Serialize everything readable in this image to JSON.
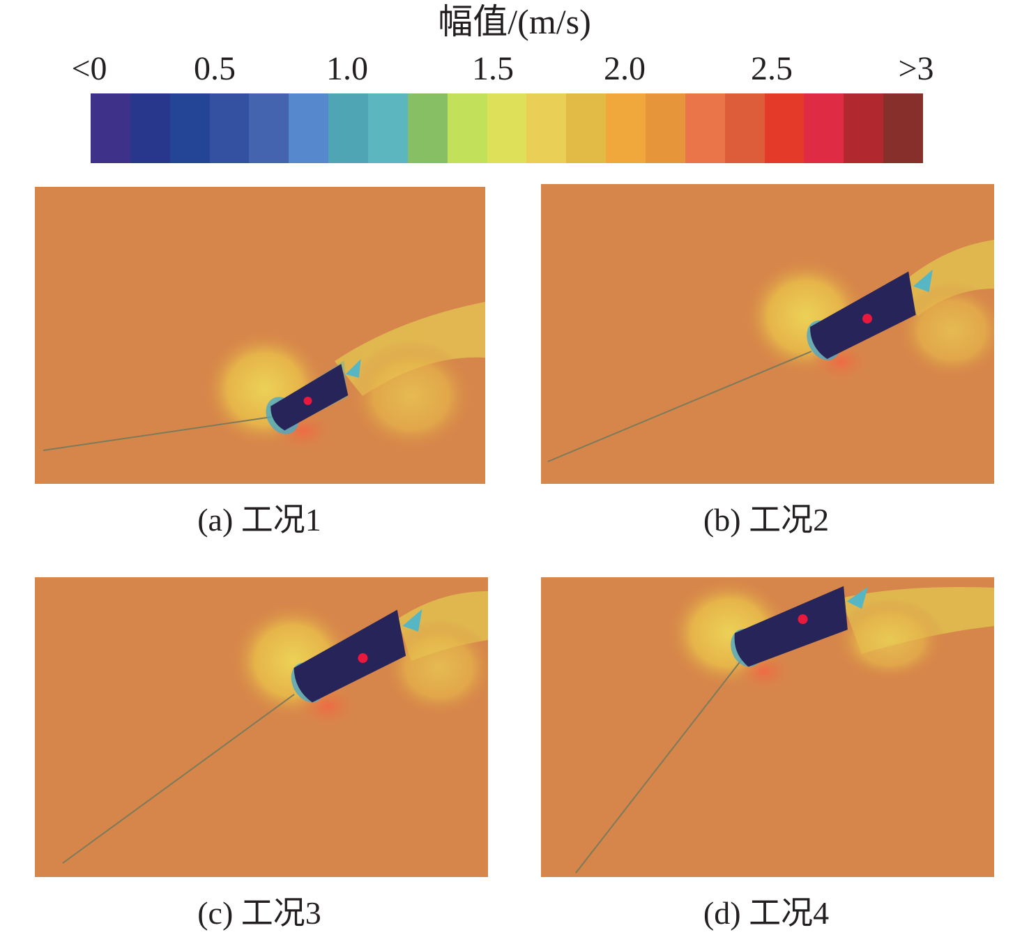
{
  "colorbar": {
    "title": "幅值/(m/s)",
    "ticks": [
      "<0",
      "0.5",
      "1.0",
      "1.5",
      "2.0",
      "2.5",
      ">3"
    ],
    "colors": [
      "#3d3189",
      "#28378b",
      "#244595",
      "#3351a0",
      "#4464b0",
      "#5588cc",
      "#4fa5b4",
      "#5cb6c0",
      "#86bf64",
      "#c3e05a",
      "#dde058",
      "#e9cf55",
      "#e1bb46",
      "#f0a83c",
      "#e6953a",
      "#ea7548",
      "#dd5c3a",
      "#e33a2a",
      "#e02b44",
      "#b1292e",
      "#87302b"
    ]
  },
  "panels": [
    {
      "caption": "(a) 工况1"
    },
    {
      "caption": "(b) 工况2"
    },
    {
      "caption": "(c) 工况3"
    },
    {
      "caption": "(d) 工况4"
    }
  ],
  "colors": {
    "background_flow": "#d6864a",
    "hull": "#262459",
    "marker": "#e8193c"
  }
}
